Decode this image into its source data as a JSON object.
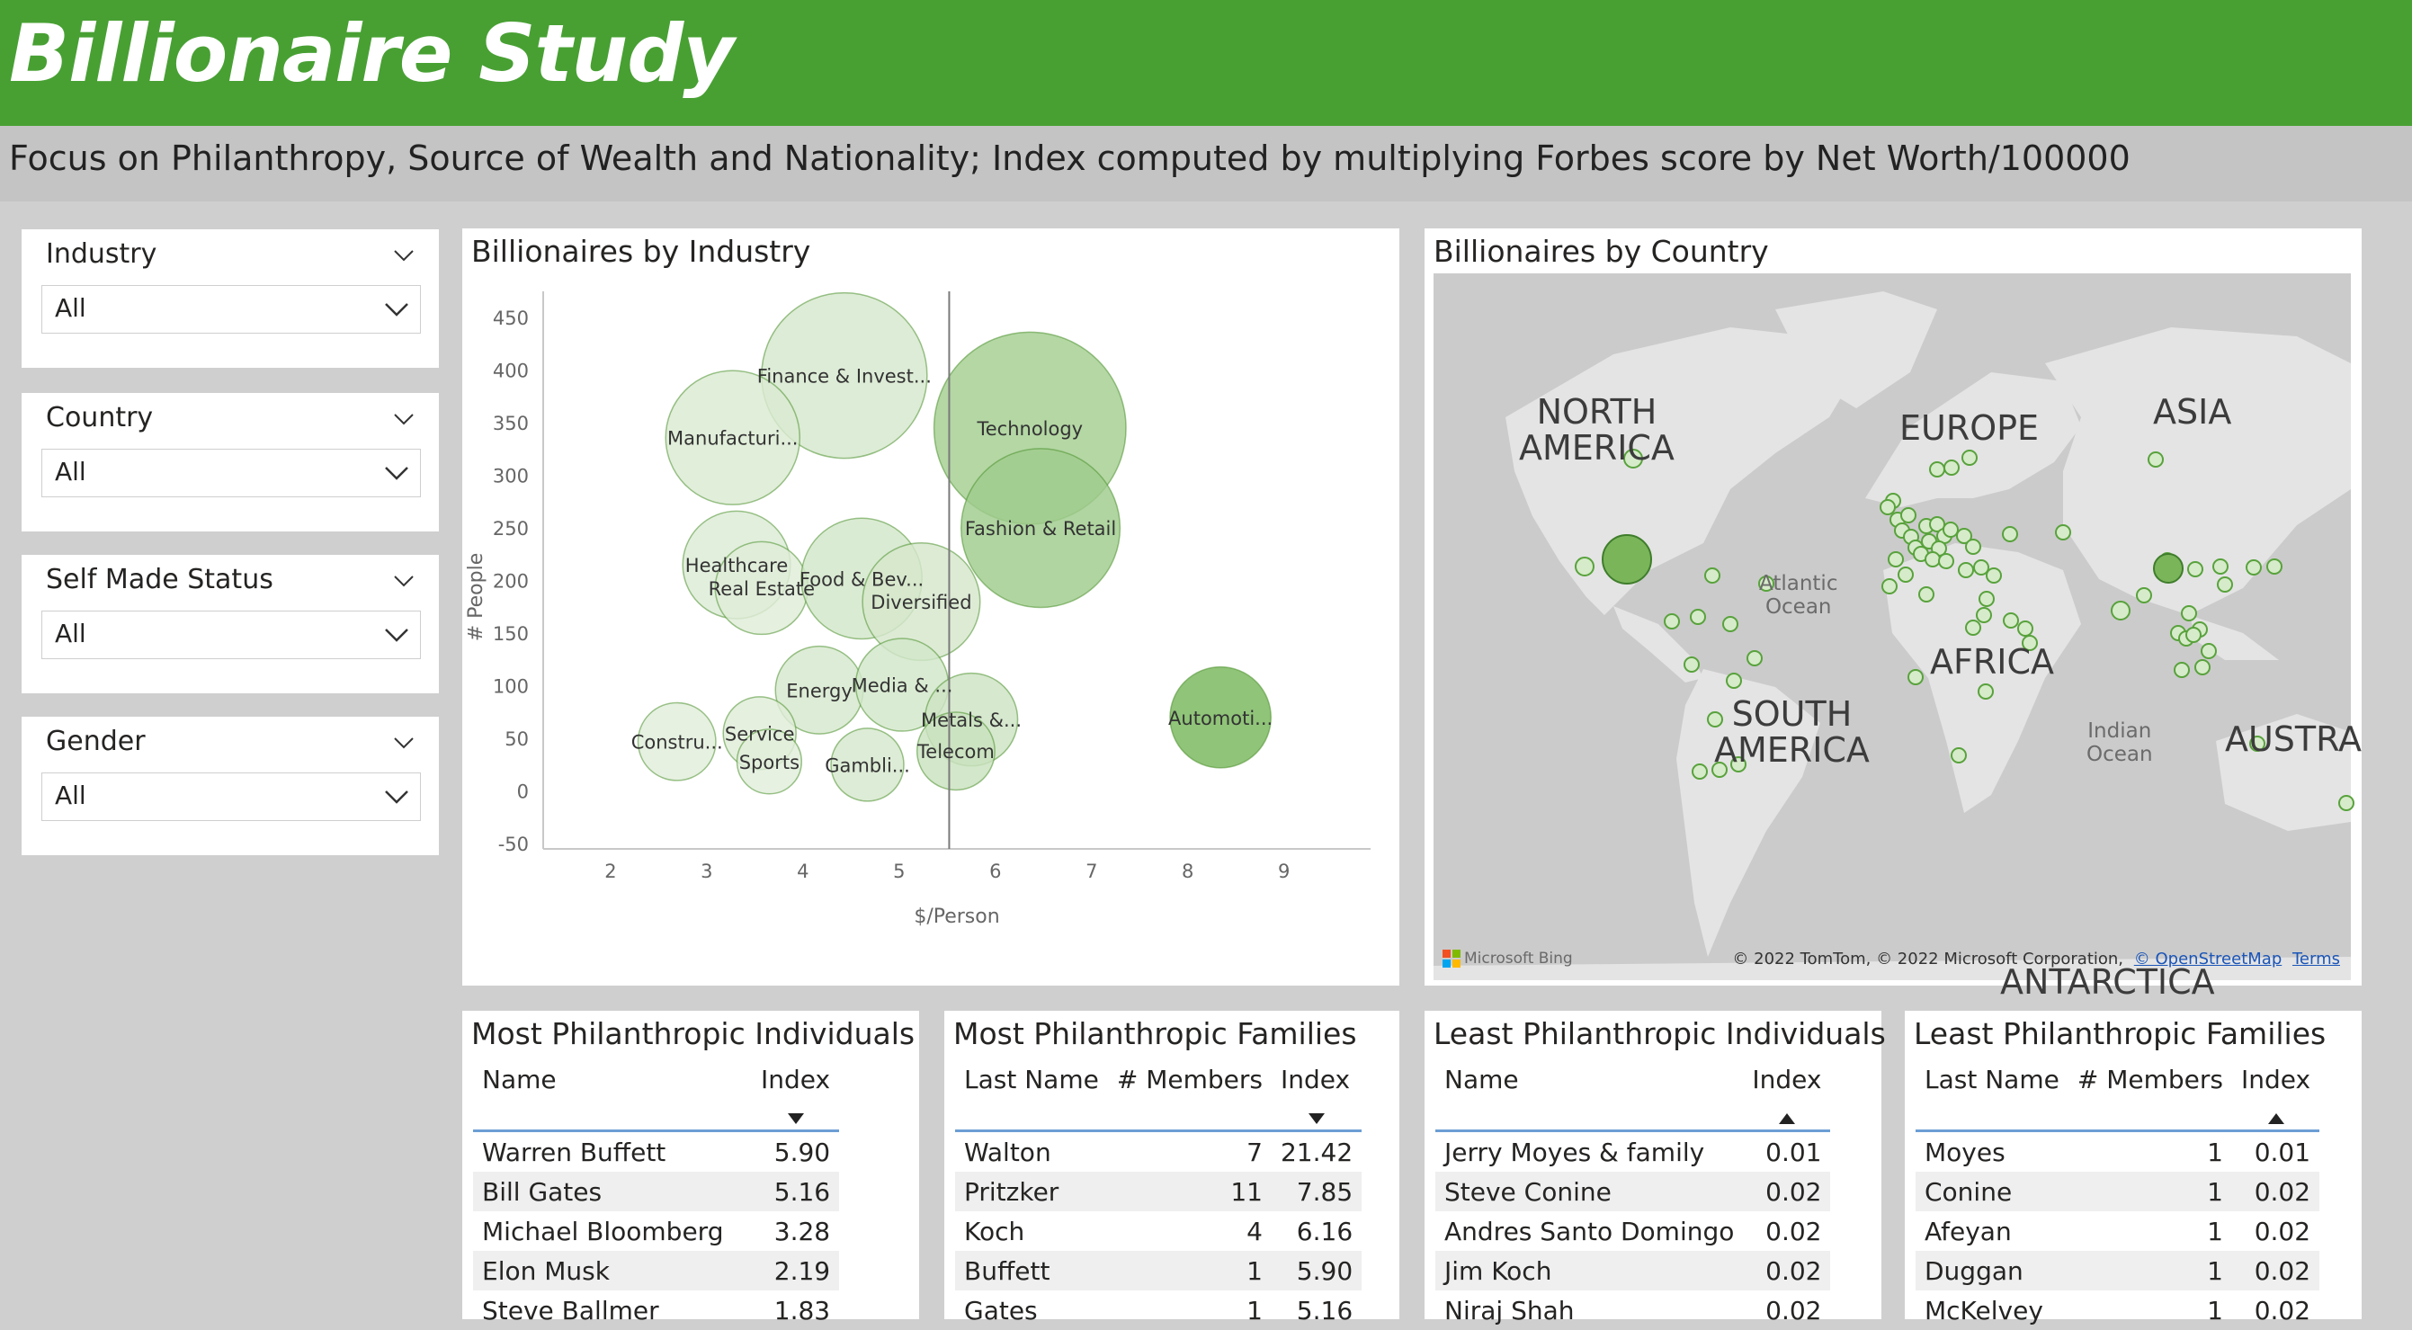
{
  "header": {
    "title": "Billionaire Study",
    "subtitle": "Focus on Philanthropy, Source of Wealth and Nationality; Index computed by multiplying Forbes score by Net Worth/100000"
  },
  "colors": {
    "header_green": "#48a033",
    "bubble_dark": "#6ab04c",
    "bubble_light": "#e9f2e4",
    "sort_blue": "#6c9ed4"
  },
  "slicers": [
    {
      "label": "Industry",
      "value": "All"
    },
    {
      "label": "Country",
      "value": "All"
    },
    {
      "label": "Self Made Status",
      "value": "All"
    },
    {
      "label": "Gender",
      "value": "All"
    }
  ],
  "industry_chart": {
    "title": "Billionaires by Industry",
    "chart_data": {
      "type": "scatter",
      "xlabel": "$/Person",
      "ylabel": "# People",
      "xlim": [
        1.3,
        9.9
      ],
      "ylim": [
        -55,
        475
      ],
      "xticks": [
        2,
        3,
        4,
        5,
        6,
        7,
        8,
        9
      ],
      "yticks": [
        -50,
        0,
        50,
        100,
        150,
        200,
        250,
        300,
        350,
        400,
        450
      ],
      "reference_line_x": 5.52,
      "points": [
        {
          "label": "Finance & Invest...",
          "x": 4.43,
          "y": 395,
          "size": 1.0,
          "shade": 0.15
        },
        {
          "label": "Manufacturi...",
          "x": 3.27,
          "y": 336,
          "size": 0.81,
          "shade": 0.12
        },
        {
          "label": "Technology",
          "x": 6.36,
          "y": 345,
          "size": 1.16,
          "shade": 0.55
        },
        {
          "label": "Fashion & Retail",
          "x": 6.47,
          "y": 250,
          "size": 0.96,
          "shade": 0.58
        },
        {
          "label": "Healthcare",
          "x": 3.31,
          "y": 215,
          "size": 0.65,
          "shade": 0.1
        },
        {
          "label": "Real Estate",
          "x": 3.57,
          "y": 193,
          "size": 0.56,
          "shade": 0.08
        },
        {
          "label": "Food & Bev...",
          "x": 4.61,
          "y": 202,
          "size": 0.73,
          "shade": 0.18
        },
        {
          "label": "Diversified",
          "x": 5.23,
          "y": 180,
          "size": 0.71,
          "shade": 0.16
        },
        {
          "label": "Energy",
          "x": 4.17,
          "y": 96,
          "size": 0.53,
          "shade": 0.15
        },
        {
          "label": "Media & ...",
          "x": 5.03,
          "y": 101,
          "size": 0.56,
          "shade": 0.18
        },
        {
          "label": "Metals &...",
          "x": 5.75,
          "y": 68,
          "size": 0.56,
          "shade": 0.22
        },
        {
          "label": "Telecom",
          "x": 5.59,
          "y": 38,
          "size": 0.47,
          "shade": 0.25
        },
        {
          "label": "Automoti...",
          "x": 8.34,
          "y": 70,
          "size": 0.61,
          "shade": 0.9
        },
        {
          "label": "Constru...",
          "x": 2.69,
          "y": 47,
          "size": 0.47,
          "shade": 0.06
        },
        {
          "label": "Service",
          "x": 3.55,
          "y": 55,
          "size": 0.44,
          "shade": 0.08
        },
        {
          "label": "Sports",
          "x": 3.65,
          "y": 28,
          "size": 0.39,
          "shade": 0.06
        },
        {
          "label": "Gambli...",
          "x": 4.67,
          "y": 25,
          "size": 0.44,
          "shade": 0.15
        }
      ]
    }
  },
  "country_map": {
    "title": "Billionaires by Country",
    "labels": {
      "north_america": [
        "NORTH",
        "AMERICA"
      ],
      "europe": "EUROPE",
      "asia": "ASIA",
      "africa": "AFRICA",
      "south_america": [
        "SOUTH",
        "AMERICA"
      ],
      "australia": "AUSTRA",
      "antarctica": "ANTARCTICA",
      "atlantic": [
        "Atlantic",
        "Ocean"
      ],
      "indian": [
        "Indian",
        "Ocean"
      ]
    },
    "logo": "Microsoft Bing",
    "copyright": "© 2022 TomTom, © 2022 Microsoft Corporation,",
    "osm_link": "© OpenStreetMap",
    "terms_link": "Terms"
  },
  "most_individuals": {
    "title": "Most Philanthropic Individuals",
    "columns": [
      "Name",
      "Index"
    ],
    "rows": [
      [
        "Warren Buffett",
        "5.90"
      ],
      [
        "Bill Gates",
        "5.16"
      ],
      [
        "Michael Bloomberg",
        "3.28"
      ],
      [
        "Elon Musk",
        "2.19"
      ],
      [
        "Steve Ballmer",
        "1.83"
      ]
    ]
  },
  "most_families": {
    "title": "Most Philanthropic Families",
    "columns": [
      "Last Name",
      "# Members",
      "Index"
    ],
    "rows": [
      [
        "Walton",
        "7",
        "21.42"
      ],
      [
        "Pritzker",
        "11",
        "7.85"
      ],
      [
        "Koch",
        "4",
        "6.16"
      ],
      [
        "Buffett",
        "1",
        "5.90"
      ],
      [
        "Gates",
        "1",
        "5.16"
      ]
    ]
  },
  "least_individuals": {
    "title": "Least Philanthropic Individuals",
    "columns": [
      "Name",
      "Index"
    ],
    "rows": [
      [
        "Jerry Moyes & family",
        "0.01"
      ],
      [
        "Steve Conine",
        "0.02"
      ],
      [
        "Andres Santo Domingo",
        "0.02"
      ],
      [
        "Jim Koch",
        "0.02"
      ],
      [
        "Niraj Shah",
        "0.02"
      ]
    ]
  },
  "least_families": {
    "title": "Least Philanthropic Families",
    "columns": [
      "Last Name",
      "# Members",
      "Index"
    ],
    "rows": [
      [
        "Moyes",
        "1",
        "0.01"
      ],
      [
        "Conine",
        "1",
        "0.02"
      ],
      [
        "Afeyan",
        "1",
        "0.02"
      ],
      [
        "Duggan",
        "1",
        "0.02"
      ],
      [
        "McKelvey",
        "1",
        "0.02"
      ]
    ]
  }
}
